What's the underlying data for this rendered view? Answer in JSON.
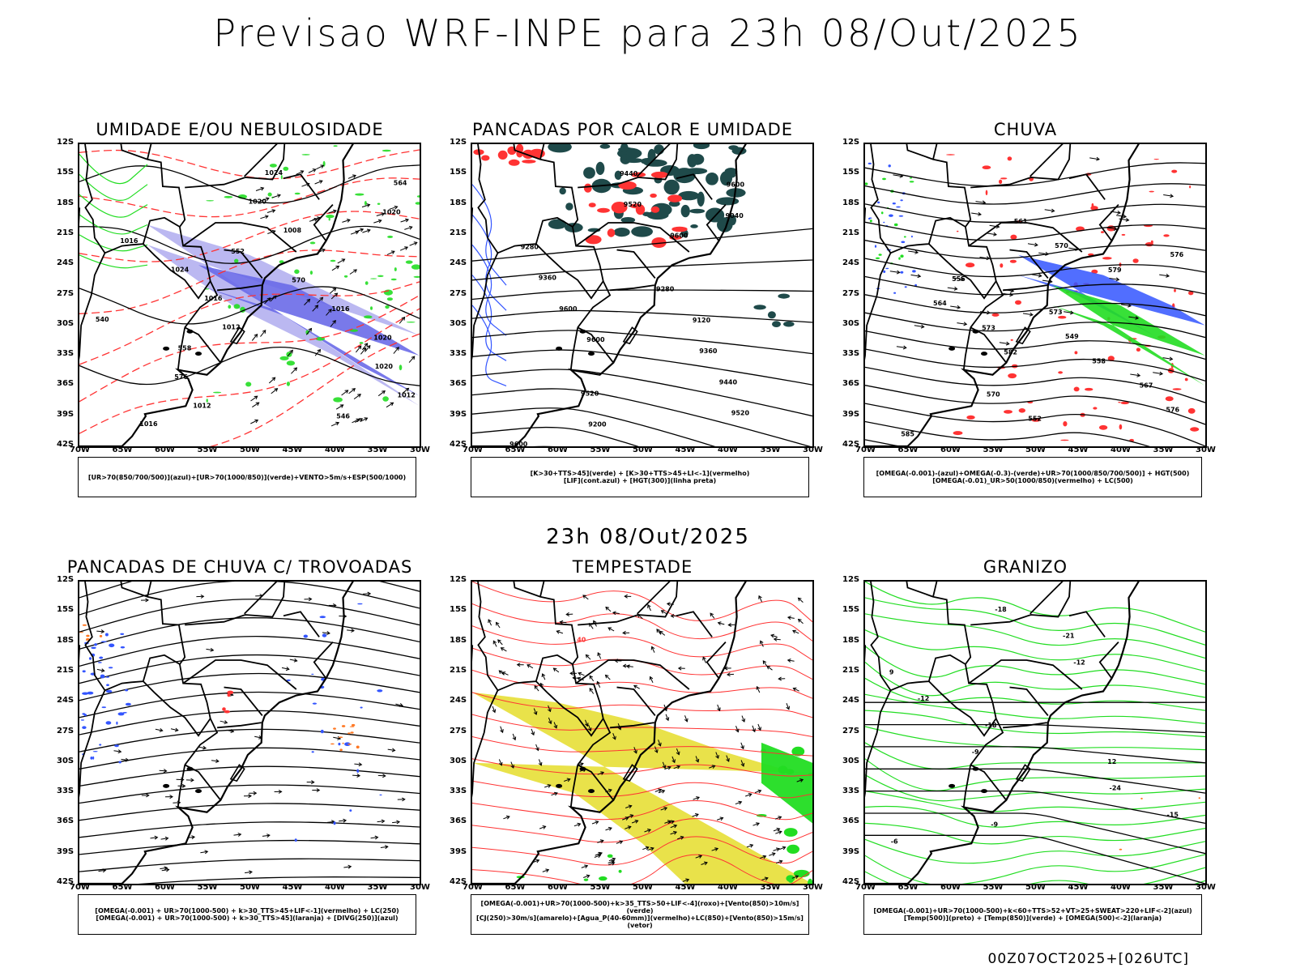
{
  "header": {
    "title": "Previsao WRF-INPE  para 23h 08/Out/2025"
  },
  "middle_time": "23h 08/Out/2025",
  "footer": "00Z07OCT2025+[026UTC]",
  "axes": {
    "y_ticks": [
      "12S",
      "15S",
      "18S",
      "21S",
      "24S",
      "27S",
      "30S",
      "33S",
      "36S",
      "39S",
      "42S"
    ],
    "x_ticks": [
      "70W",
      "65W",
      "60W",
      "55W",
      "50W",
      "45W",
      "40W",
      "35W",
      "30W"
    ],
    "lat_range": [
      -42,
      -12
    ],
    "lon_range": [
      -70,
      -30
    ]
  },
  "panels": [
    {
      "title": "UMIDADE E/OU NEBULOSIDADE",
      "legend": [
        "[UR>70(850/700/500)](azul)+[UR>70(1000/850)](verde)+VENTO>5m/s+ESP(500/1000)"
      ],
      "contour_labels": [
        "1016",
        "1012",
        "1008",
        "1012",
        "1016",
        "1020",
        "1020",
        "1024",
        "1024",
        "1020",
        "1016",
        "1012",
        "1016",
        "1020",
        "576",
        "570",
        "564",
        "558",
        "552",
        "546",
        "540"
      ]
    },
    {
      "title": "PANCADAS POR CALOR E UMIDADE",
      "legend": [
        "[K>30+TTS>45](verde) + [K>30+TTS>45+LI<-1](vermelho)",
        "[LIF](cont.azul) + [HGT(300)](linha preta)"
      ],
      "contour_labels": [
        "9600",
        "9600",
        "9600",
        "9520",
        "9600",
        "9520",
        "9440",
        "9360",
        "9440",
        "9360",
        "9280",
        "9200",
        "9120",
        "9040",
        "9520",
        "9280",
        "9600"
      ]
    },
    {
      "title": "CHUVA",
      "legend": [
        "[OMEGA(-0.001)-(azul)+OMEGA(-0.3)-(verde)+UR>70(1000/850/700/500)] + HGT(500)",
        "[OMEGA(-0.01)_UR>50(1000/850)(vermelho) + LC(500)"
      ],
      "contour_labels": [
        "585",
        "582",
        "579",
        "576",
        "573",
        "570",
        "567",
        "564",
        "561",
        "558",
        "555",
        "552",
        "549",
        "576",
        "570",
        "573"
      ]
    },
    {
      "title": "PANCADAS DE CHUVA C/ TROVOADAS",
      "legend": [
        "[OMEGA(-0.001) + UR>70(1000-500) + k>30_TTS>45+LIF<-1](vermelho) + LC(250)",
        "[OMEGA(-0.001) + UR>70(1000-500) + k>30_TTS>45](laranja) + [DIVG(250)](azul)"
      ],
      "contour_labels": []
    },
    {
      "title": "TEMPESTADE",
      "legend": [
        "[OMEGA(-0.001)+UR>70(1000-500)+k>35_TTS>50+LIF<-4](roxo)+[Vento(850)>10m/s](verde)",
        "[CJ(250)>30m/s](amarelo)+[Agua_P(40-60mm)](vermelho)+LC(850)+[Vento(850)>15m/s](vetor)"
      ],
      "contour_labels": [
        "40"
      ]
    },
    {
      "title": "GRANIZO",
      "legend": [
        "[OMEGA(-0.001)+UR>70(1000-500)+k<60+TTS>52+VT>25+SWEAT>220+LIF<-2](azul)",
        "[Temp(500)](preto) + [Temp(850)](verde) + [OMEGA(500)<-2](laranja)"
      ],
      "contour_labels": [
        "-6",
        "-9",
        "-12",
        "-15",
        "-18",
        "-21",
        "-24",
        "-12",
        "-18",
        "12",
        "9",
        "-9"
      ]
    }
  ],
  "colors": {
    "red": "#ff3333",
    "green": "#22dd22",
    "blue": "#3355ff",
    "dark_teal": "#1f4a4a",
    "yellow": "#e8e040",
    "lavender": "#b4b0f0",
    "orange": "#ff7722",
    "black": "#000000"
  }
}
